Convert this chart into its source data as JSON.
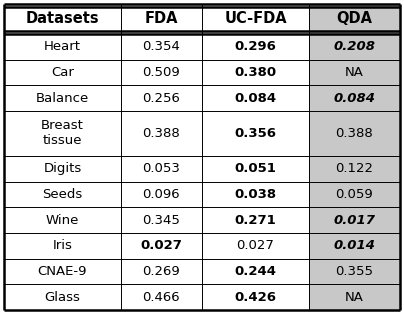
{
  "headers": [
    "Datasets",
    "FDA",
    "UC-FDA",
    "QDA"
  ],
  "rows": [
    {
      "dataset": "Heart",
      "fda": "0.354",
      "ucfda": "0.296",
      "qda": "0.208",
      "fda_bold": false,
      "ucfda_bold": true,
      "qda_bold": true,
      "qda_italic": true
    },
    {
      "dataset": "Car",
      "fda": "0.509",
      "ucfda": "0.380",
      "qda": "NA",
      "fda_bold": false,
      "ucfda_bold": true,
      "qda_bold": false,
      "qda_italic": false
    },
    {
      "dataset": "Balance",
      "fda": "0.256",
      "ucfda": "0.084",
      "qda": "0.084",
      "fda_bold": false,
      "ucfda_bold": true,
      "qda_bold": true,
      "qda_italic": true
    },
    {
      "dataset": "Breast\ntissue",
      "fda": "0.388",
      "ucfda": "0.356",
      "qda": "0.388",
      "fda_bold": false,
      "ucfda_bold": true,
      "qda_bold": false,
      "qda_italic": false
    },
    {
      "dataset": "Digits",
      "fda": "0.053",
      "ucfda": "0.051",
      "qda": "0.122",
      "fda_bold": false,
      "ucfda_bold": true,
      "qda_bold": false,
      "qda_italic": false
    },
    {
      "dataset": "Seeds",
      "fda": "0.096",
      "ucfda": "0.038",
      "qda": "0.059",
      "fda_bold": false,
      "ucfda_bold": true,
      "qda_bold": false,
      "qda_italic": false
    },
    {
      "dataset": "Wine",
      "fda": "0.345",
      "ucfda": "0.271",
      "qda": "0.017",
      "fda_bold": false,
      "ucfda_bold": true,
      "qda_bold": true,
      "qda_italic": true
    },
    {
      "dataset": "Iris",
      "fda": "0.027",
      "ucfda": "0.027",
      "qda": "0.014",
      "fda_bold": true,
      "ucfda_bold": false,
      "qda_bold": true,
      "qda_italic": true
    },
    {
      "dataset": "CNAE-9",
      "fda": "0.269",
      "ucfda": "0.244",
      "qda": "0.355",
      "fda_bold": false,
      "ucfda_bold": true,
      "qda_bold": false,
      "qda_italic": false
    },
    {
      "dataset": "Glass",
      "fda": "0.466",
      "ucfda": "0.426",
      "qda": "NA",
      "fda_bold": false,
      "ucfda_bold": true,
      "qda_bold": false,
      "qda_italic": false
    }
  ],
  "qda_bg_color": "#c8c8c8",
  "fig_width": 4.04,
  "fig_height": 3.14,
  "dpi": 100,
  "header_fontsize": 10.5,
  "cell_fontsize": 9.5
}
